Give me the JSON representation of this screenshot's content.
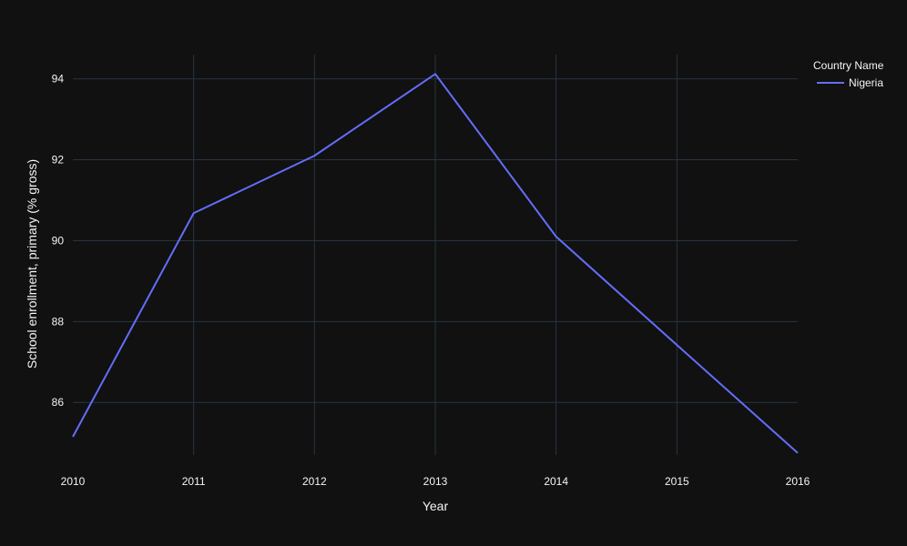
{
  "chart_data": {
    "type": "line",
    "title": "",
    "xlabel": "Year",
    "ylabel": "School enrollment, primary (% gross)",
    "x": [
      2010,
      2011,
      2012,
      2013,
      2014,
      2015,
      2016
    ],
    "xlim": [
      2010,
      2016
    ],
    "ylim": [
      84.7,
      94.6
    ],
    "yticks": [
      86,
      88,
      90,
      92,
      94
    ],
    "grid": true,
    "legend": {
      "title": "Country Name",
      "placement": "top-right"
    },
    "series": [
      {
        "name": "Nigeria",
        "color": "#636efa",
        "values": [
          85.15,
          90.68,
          92.1,
          94.12,
          90.1,
          87.42,
          84.75
        ]
      }
    ]
  }
}
